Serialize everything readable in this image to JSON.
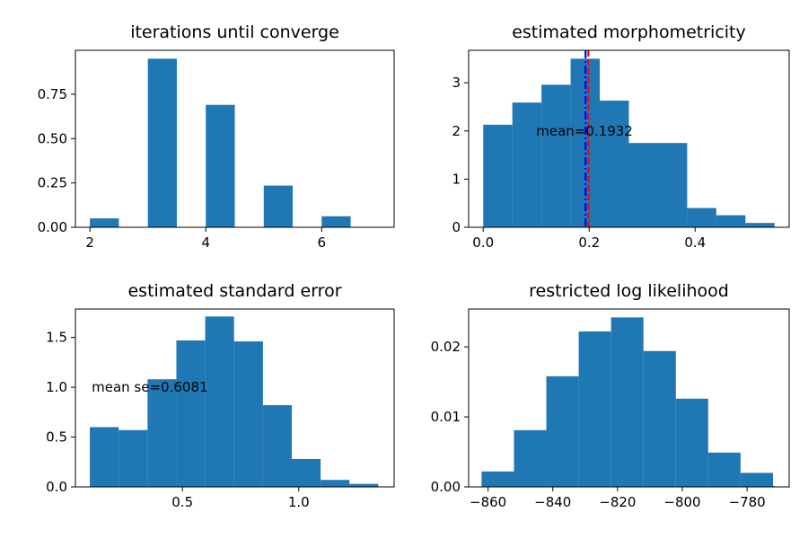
{
  "figure": {
    "bar_color": "#1f77b4",
    "mean_line_colors": {
      "blue": "#0000ff",
      "red": "#ff0000"
    }
  },
  "chart_data": [
    {
      "id": "iterations",
      "type": "bar",
      "title": "iterations until converge",
      "xlabel": "",
      "ylabel": "",
      "xlim": [
        1.75,
        7.25
      ],
      "ylim": [
        0,
        0.9975
      ],
      "xticks": [
        2,
        4,
        6
      ],
      "xtick_labels": [
        "2",
        "4",
        "6"
      ],
      "yticks": [
        0,
        0.25,
        0.5,
        0.75
      ],
      "ytick_labels": [
        "0.00",
        "0.25",
        "0.50",
        "0.75"
      ],
      "grid": false,
      "bins": [
        [
          2,
          2.5
        ],
        [
          2.5,
          3
        ],
        [
          3,
          3.5
        ],
        [
          3.5,
          4
        ],
        [
          4,
          4.5
        ],
        [
          4.5,
          5
        ],
        [
          5,
          5.5
        ],
        [
          5.5,
          6
        ],
        [
          6,
          6.5
        ],
        [
          6.5,
          7
        ]
      ],
      "values": [
        0.05,
        0,
        0.95,
        0,
        0.69,
        0,
        0.235,
        0,
        0.062,
        0
      ]
    },
    {
      "id": "morphometricity",
      "type": "bar",
      "title": "estimated morphometricity",
      "xlabel": "",
      "ylabel": "",
      "xlim": [
        -0.0275,
        0.5775
      ],
      "ylim": [
        0,
        3.675
      ],
      "xticks": [
        0,
        0.2,
        0.4
      ],
      "xtick_labels": [
        "0.0",
        "0.2",
        "0.4"
      ],
      "yticks": [
        0,
        1,
        2,
        3
      ],
      "ytick_labels": [
        "0",
        "1",
        "2",
        "3"
      ],
      "grid": false,
      "bins": [
        [
          0,
          0.055
        ],
        [
          0.055,
          0.11
        ],
        [
          0.11,
          0.165
        ],
        [
          0.165,
          0.22
        ],
        [
          0.22,
          0.275
        ],
        [
          0.275,
          0.33
        ],
        [
          0.33,
          0.385
        ],
        [
          0.385,
          0.44
        ],
        [
          0.44,
          0.495
        ],
        [
          0.495,
          0.55
        ]
      ],
      "values": [
        2.13,
        2.59,
        2.96,
        3.5,
        2.63,
        1.75,
        1.75,
        0.4,
        0.25,
        0.09
      ],
      "annotations": [
        {
          "text": "mean=0.1932",
          "x": 0.1,
          "y": 2.0
        }
      ],
      "vlines": [
        {
          "x": 0.1932,
          "color": "#0000ff",
          "style": "dashdot"
        },
        {
          "x": 0.1985,
          "color": "#ff0000",
          "style": "dashed"
        }
      ]
    },
    {
      "id": "standard_error",
      "type": "bar",
      "title": "estimated standard error",
      "xlabel": "",
      "ylabel": "",
      "xlim": [
        0.04,
        1.41
      ],
      "ylim": [
        0,
        1.785
      ],
      "xticks": [
        0.5,
        1.0
      ],
      "xtick_labels": [
        "0.5",
        "1.0"
      ],
      "yticks": [
        0,
        0.5,
        1.0,
        1.5
      ],
      "ytick_labels": [
        "0.0",
        "0.5",
        "1.0",
        "1.5"
      ],
      "grid": false,
      "bins": [
        [
          0.102,
          0.226
        ],
        [
          0.226,
          0.35
        ],
        [
          0.35,
          0.474
        ],
        [
          0.474,
          0.598
        ],
        [
          0.598,
          0.722
        ],
        [
          0.722,
          0.846
        ],
        [
          0.846,
          0.97
        ],
        [
          0.97,
          1.094
        ],
        [
          1.094,
          1.218
        ],
        [
          1.218,
          1.342
        ]
      ],
      "values": [
        0.6,
        0.57,
        1.08,
        1.47,
        1.71,
        1.46,
        0.82,
        0.28,
        0.07,
        0.03
      ],
      "annotations": [
        {
          "text": "mean se=0.6081",
          "x": 0.11,
          "y": 1.0
        }
      ]
    },
    {
      "id": "log_likelihood",
      "type": "bar",
      "title": "restricted log likelihood",
      "xlabel": "",
      "ylabel": "",
      "xlim": [
        -866.0,
        -767.0
      ],
      "ylim": [
        0,
        0.0254
      ],
      "xticks": [
        -860,
        -840,
        -820,
        -800,
        -780
      ],
      "xtick_labels": [
        "−860",
        "−840",
        "−820",
        "−800",
        "−780"
      ],
      "yticks": [
        0,
        0.01,
        0.02
      ],
      "ytick_labels": [
        "0.00",
        "0.01",
        "0.02"
      ],
      "grid": false,
      "bins": [
        [
          -862,
          -852
        ],
        [
          -852,
          -842
        ],
        [
          -842,
          -832
        ],
        [
          -832,
          -822
        ],
        [
          -822,
          -812
        ],
        [
          -812,
          -802
        ],
        [
          -802,
          -792
        ],
        [
          -792,
          -782
        ],
        [
          -782,
          -772
        ]
      ],
      "values": [
        0.0022,
        0.0081,
        0.0158,
        0.0222,
        0.0242,
        0.0194,
        0.0126,
        0.0049,
        0.002
      ],
      "extra_bins": [
        [
          [
            -772,
            -771.5
          ],
          0.00015
        ]
      ]
    }
  ]
}
